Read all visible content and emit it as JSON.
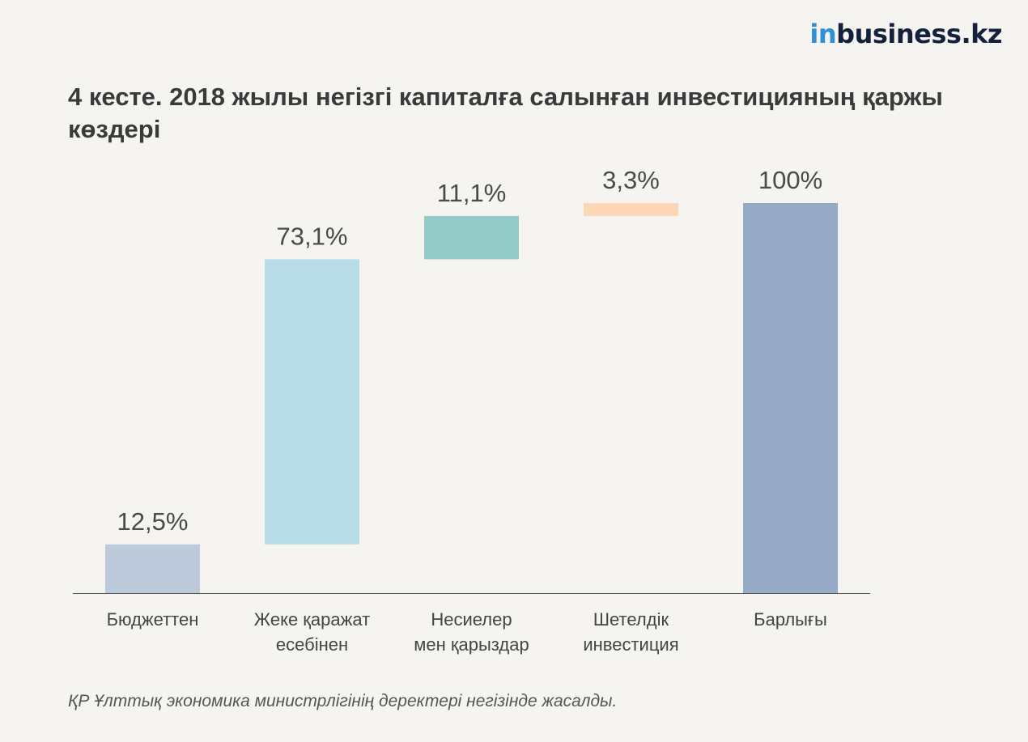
{
  "brand": {
    "logo_prefix": "in",
    "logo_rest": "business.kz",
    "color_prefix": "#2f8fd8",
    "color_rest": "#14213d"
  },
  "title": "4 кесте. 2018 жылы негізгі капиталға салынған инвестицияның қаржы көздері",
  "source": "ҚР Ұлттық экономика министрлігінің деректері негізінде жасалды.",
  "chart_data": {
    "type": "bar",
    "subtype": "waterfall",
    "categories": [
      [
        "Бюджеттен"
      ],
      [
        "Жеке қаражат",
        "есебінен"
      ],
      [
        "Несиелер",
        "мен қарыздар"
      ],
      [
        "Шетелдік",
        "инвестиция"
      ],
      [
        "Барлығы"
      ]
    ],
    "values": [
      12.5,
      73.1,
      11.1,
      3.3,
      100
    ],
    "value_labels": [
      "12,5%",
      "73,1%",
      "11,1%",
      "3,3%",
      "100%"
    ],
    "total_index": 4,
    "colors": [
      "#bdcadc",
      "#b8dce8",
      "#94cbc9",
      "#fdd6b6",
      "#96aac8"
    ],
    "ylim": [
      0,
      100
    ],
    "grid": false,
    "legend": "none"
  }
}
